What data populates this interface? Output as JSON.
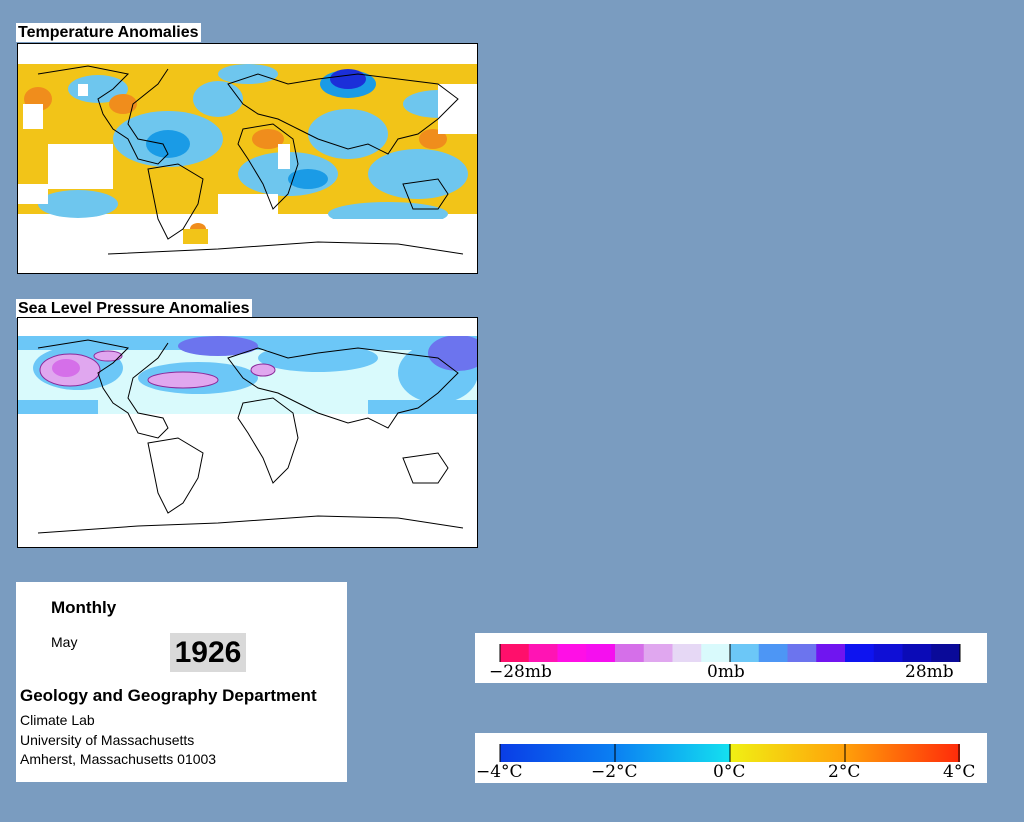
{
  "maps": {
    "temperature": {
      "title": "Temperature Anomalies"
    },
    "pressure": {
      "title": "Sea Level Pressure Anomalies"
    }
  },
  "info": {
    "frequency": "Monthly",
    "month": "May",
    "year": "1926",
    "department": "Geology and Geography Department",
    "lab": "Climate Lab",
    "university": "University of Massachusetts",
    "address": "Amherst, Massachusetts 01003"
  },
  "pressure_legend": {
    "labels": [
      "−28mb",
      "0mb",
      "28mb"
    ],
    "colors": [
      "#ff0f6b",
      "#ff14b4",
      "#ff0fe6",
      "#f50fef",
      "#d56fe9",
      "#e0a7ef",
      "#e6d8f5",
      "#d9fafc",
      "#6cc7f7",
      "#4d96f5",
      "#6c74ee",
      "#7015f0",
      "#0e14f0",
      "#0f0fd6",
      "#0b0bb7",
      "#0a0a99"
    ]
  },
  "temperature_legend": {
    "labels": [
      "−4°C",
      "−2°C",
      "0°C",
      "2°C",
      "4°C"
    ],
    "colors": [
      "#0a3de6",
      "#0b6ff2",
      "#0fa6f5",
      "#14d8f0",
      "#e6ee14",
      "#ffd60a",
      "#ff9b0a",
      "#ff5a0a"
    ]
  }
}
